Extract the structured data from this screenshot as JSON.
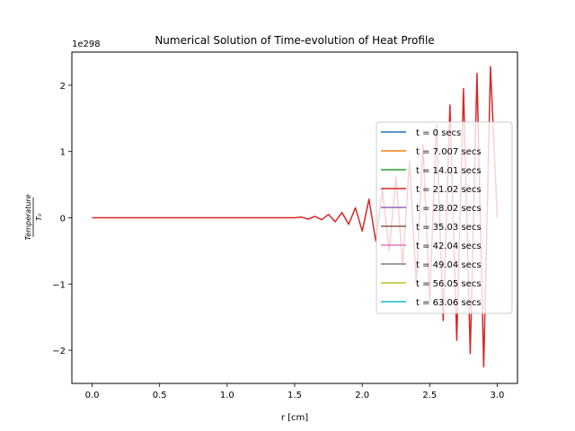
{
  "chart_data": {
    "type": "line",
    "title": "Numerical Solution of Time-evolution of Heat Profile",
    "xlabel": "r [cm]",
    "ylabel_numerator": "Temperature",
    "ylabel_denominator": "T₀",
    "y_offset_label": "1e298",
    "xlim": [
      -0.15,
      3.15
    ],
    "ylim": [
      -2.5,
      2.5
    ],
    "x_ticks": [
      0.0,
      0.5,
      1.0,
      1.5,
      2.0,
      2.5,
      3.0
    ],
    "x_tick_labels": [
      "0.0",
      "0.5",
      "1.0",
      "1.5",
      "2.0",
      "2.5",
      "3.0"
    ],
    "y_ticks": [
      -2,
      -1,
      0,
      1,
      2
    ],
    "y_tick_labels": [
      "−2",
      "−1",
      "0",
      "1",
      "2"
    ],
    "grid": false,
    "legend_position": "center-right",
    "series": [
      {
        "name": "t = 0 secs",
        "color": "#1f77b4",
        "visible_trace": false
      },
      {
        "name": "t = 7.007 secs",
        "color": "#ff7f0e",
        "visible_trace": false
      },
      {
        "name": "t = 14.01 secs",
        "color": "#2ca02c",
        "visible_trace": false
      },
      {
        "name": "t = 21.02 secs",
        "color": "#d62728",
        "visible_trace": true,
        "x": [
          0.0,
          1.5,
          1.55,
          1.6,
          1.65,
          1.7,
          1.75,
          1.8,
          1.85,
          1.9,
          1.95,
          2.0,
          2.05,
          2.1,
          2.15,
          2.2,
          2.25,
          2.3,
          2.35,
          2.4,
          2.45,
          2.5,
          2.55,
          2.6,
          2.65,
          2.7,
          2.75,
          2.8,
          2.85,
          2.9,
          2.95,
          3.0
        ],
        "y": [
          0.0,
          0.0,
          0.01,
          -0.02,
          0.02,
          -0.03,
          0.05,
          -0.06,
          0.08,
          -0.1,
          0.15,
          -0.2,
          0.28,
          -0.35,
          0.42,
          -0.5,
          0.62,
          -0.72,
          0.85,
          -0.98,
          1.1,
          -1.25,
          1.4,
          -1.55,
          1.7,
          -1.85,
          1.95,
          -2.05,
          2.18,
          -2.25,
          2.28,
          0.0
        ]
      },
      {
        "name": "t = 28.02 secs",
        "color": "#9467bd",
        "visible_trace": false
      },
      {
        "name": "t = 35.03 secs",
        "color": "#8c564b",
        "visible_trace": false
      },
      {
        "name": "t = 42.04 secs",
        "color": "#e377c2",
        "visible_trace": false
      },
      {
        "name": "t = 49.04 secs",
        "color": "#7f7f7f",
        "visible_trace": false
      },
      {
        "name": "t = 56.05 secs",
        "color": "#bcbd22",
        "visible_trace": false
      },
      {
        "name": "t = 63.06 secs",
        "color": "#17becf",
        "visible_trace": false
      }
    ]
  }
}
